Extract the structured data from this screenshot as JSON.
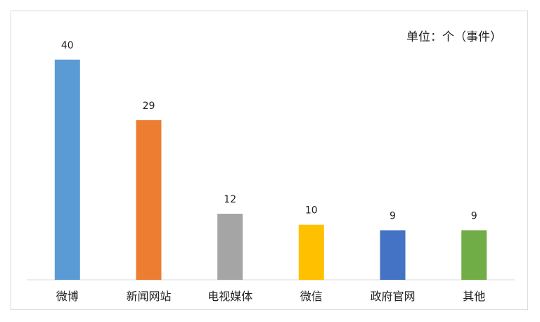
{
  "chart_data": {
    "type": "bar",
    "unit_note": "单位：个（事件）",
    "categories": [
      "微博",
      "新闻网站",
      "电视媒体",
      "微信",
      "政府官网",
      "其他"
    ],
    "values": [
      40,
      29,
      12,
      10,
      9,
      9
    ],
    "colors": [
      "#5b9bd5",
      "#ed7d31",
      "#a5a5a5",
      "#ffc000",
      "#4472c4",
      "#70ad47"
    ],
    "ylim": [
      0,
      50
    ],
    "data_labels": true,
    "grid": false,
    "legend": "none"
  }
}
